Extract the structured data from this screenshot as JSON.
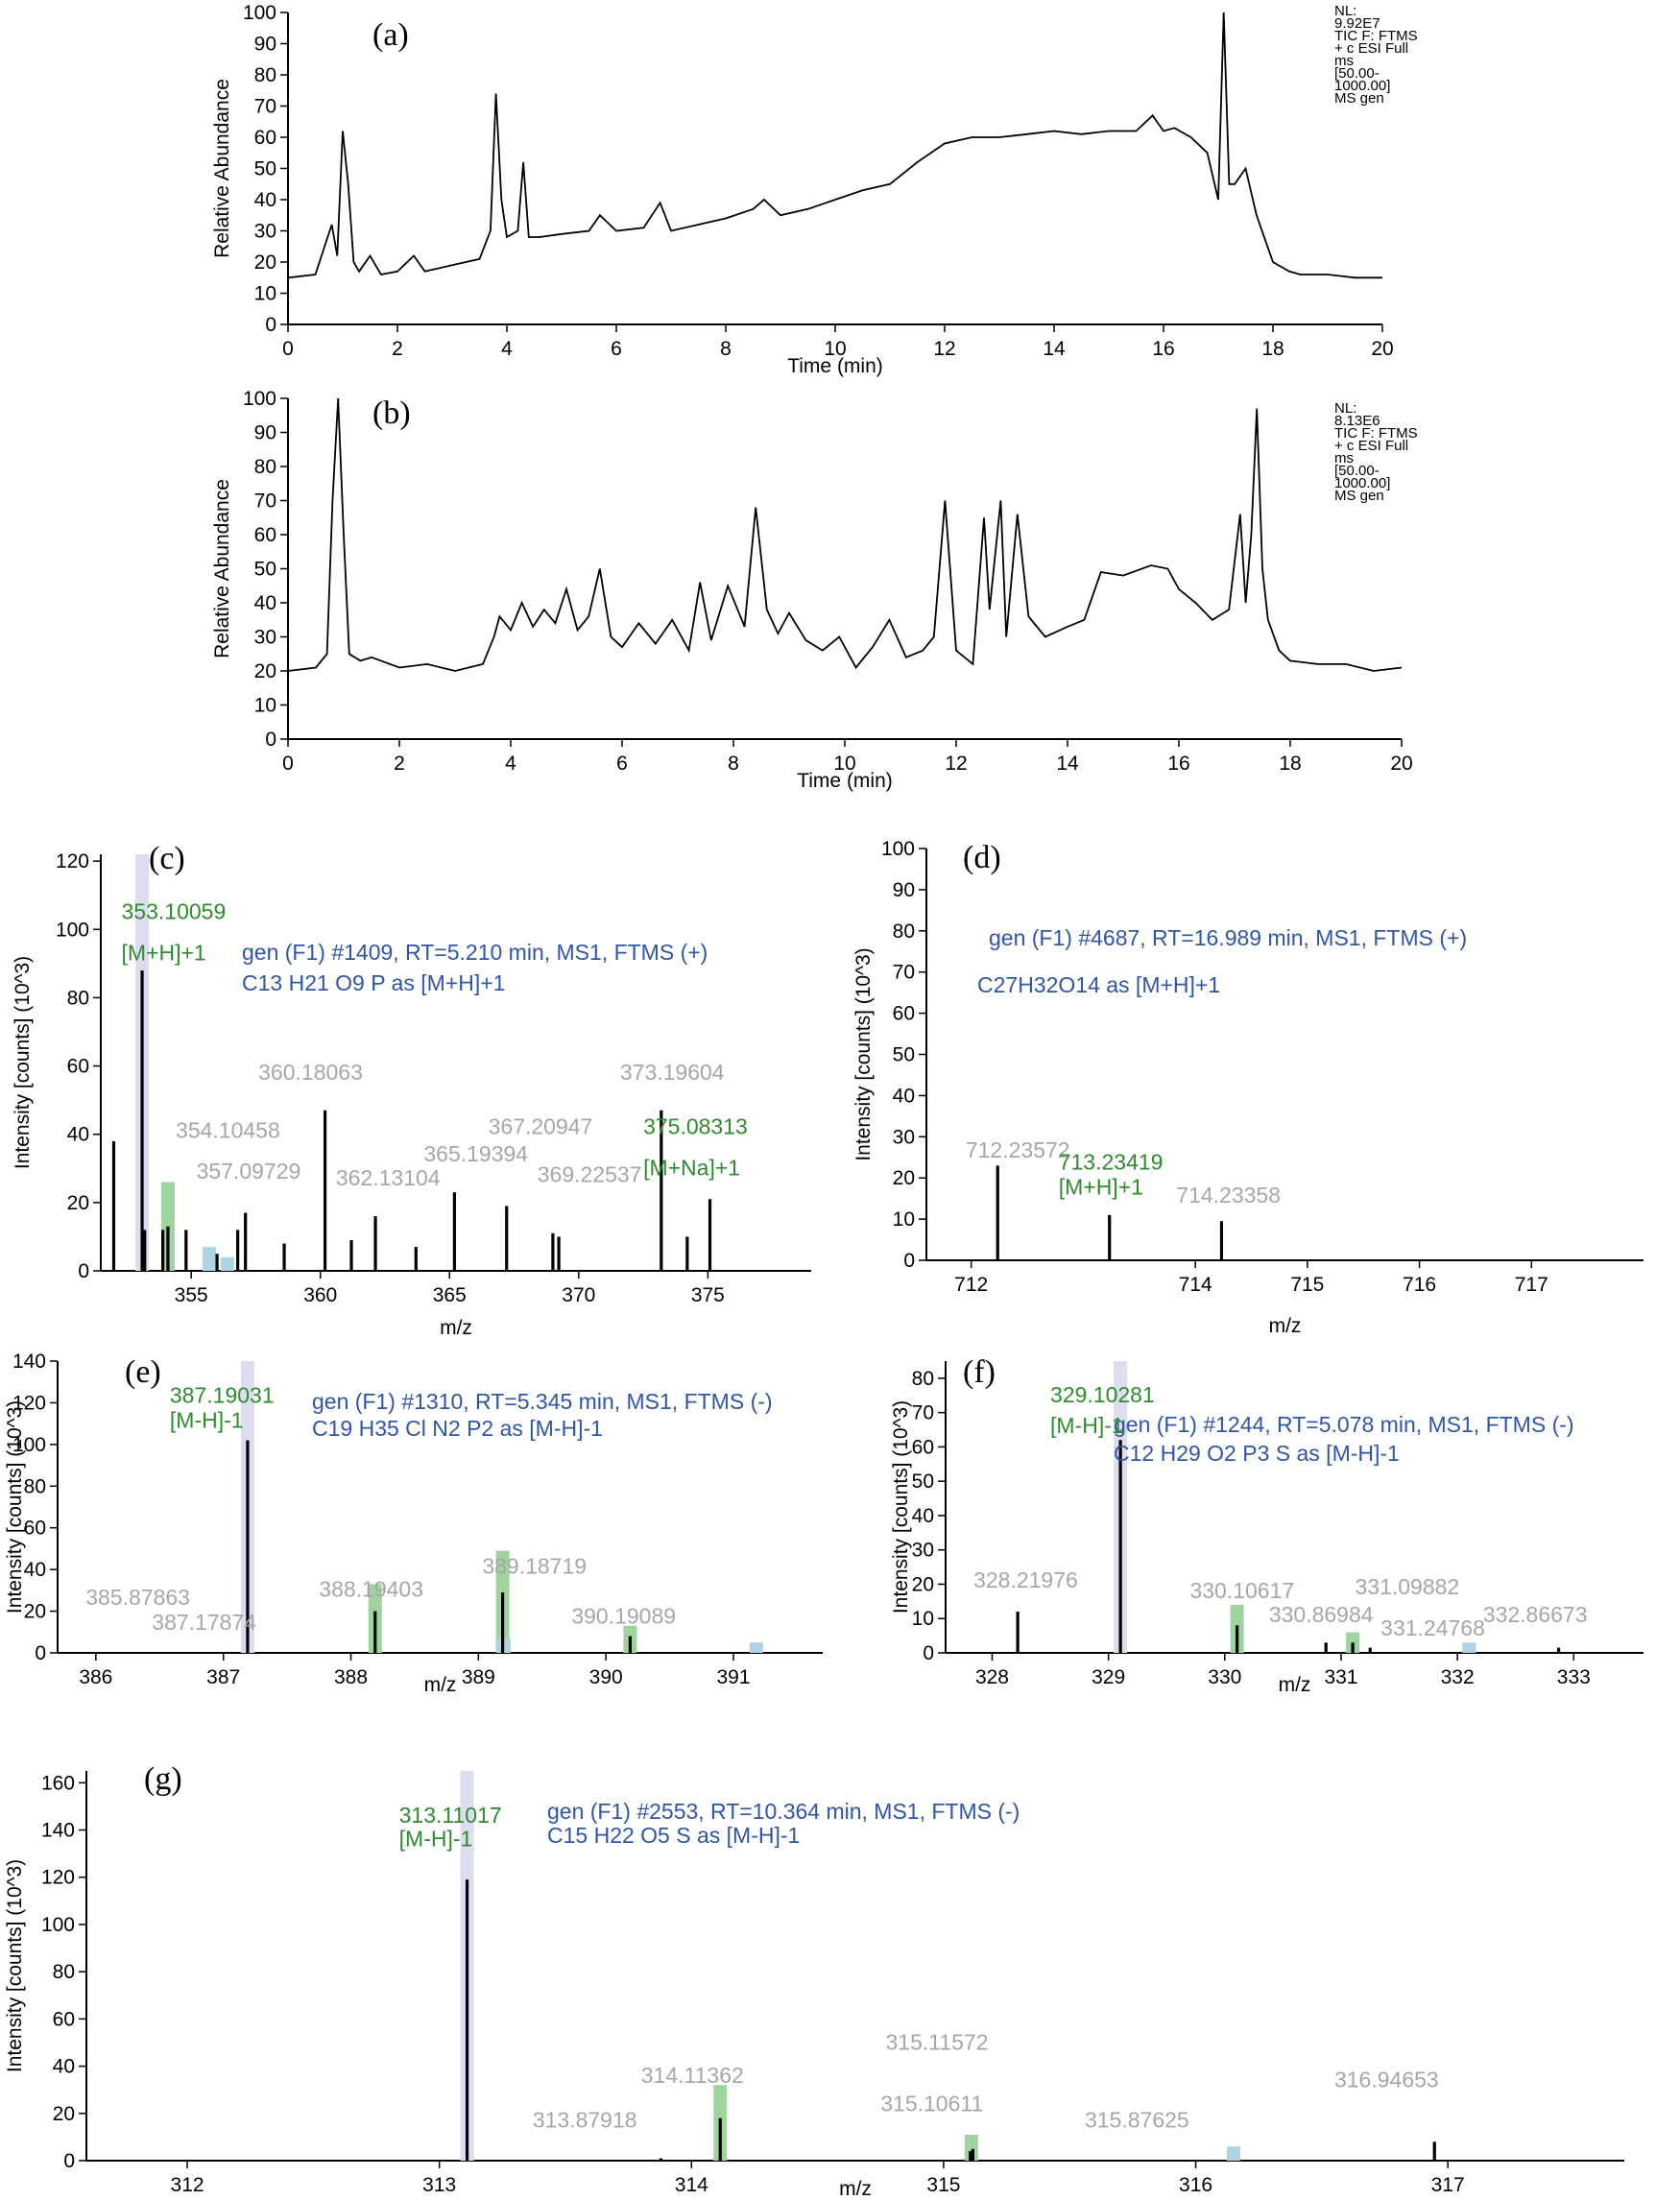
{
  "chart_data": [
    {
      "id": "a",
      "type": "line",
      "panel_label": "(a)",
      "xlabel": "Time (min)",
      "ylabel": "Relative Abundance",
      "xlim": [
        0,
        20
      ],
      "ylim": [
        0,
        100
      ],
      "xticks": [
        "0",
        "2",
        "4",
        "6",
        "8",
        "10",
        "12",
        "14",
        "16",
        "18",
        "20"
      ],
      "yticks": [
        "0",
        "10",
        "20",
        "30",
        "40",
        "50",
        "60",
        "70",
        "80",
        "90",
        "100"
      ],
      "info": [
        "NL:",
        "9.92E7",
        "TIC F: FTMS",
        "+ c ESI Full",
        "ms",
        "[50.00-",
        "1000.00]",
        "MS gen"
      ],
      "x": [
        0,
        0.5,
        0.8,
        0.9,
        1.0,
        1.1,
        1.2,
        1.3,
        1.5,
        1.7,
        2.0,
        2.3,
        2.5,
        3.0,
        3.5,
        3.7,
        3.8,
        3.9,
        4.0,
        4.2,
        4.3,
        4.4,
        4.6,
        5.0,
        5.5,
        5.7,
        6.0,
        6.5,
        6.8,
        7.0,
        7.5,
        8.0,
        8.5,
        8.7,
        9.0,
        9.5,
        10.0,
        10.5,
        11.0,
        11.5,
        12.0,
        12.5,
        13.0,
        13.5,
        14.0,
        14.5,
        15.0,
        15.5,
        15.8,
        16.0,
        16.2,
        16.5,
        16.8,
        17.0,
        17.1,
        17.2,
        17.3,
        17.5,
        17.7,
        18.0,
        18.3,
        18.5,
        19.0,
        19.5,
        20.0
      ],
      "y": [
        15,
        16,
        32,
        22,
        62,
        45,
        20,
        17,
        22,
        16,
        17,
        22,
        17,
        19,
        21,
        30,
        74,
        40,
        28,
        30,
        52,
        28,
        28,
        29,
        30,
        35,
        30,
        31,
        39,
        30,
        32,
        34,
        37,
        40,
        35,
        37,
        40,
        43,
        45,
        52,
        58,
        60,
        60,
        61,
        62,
        61,
        62,
        62,
        67,
        62,
        63,
        60,
        55,
        40,
        100,
        45,
        45,
        50,
        35,
        20,
        17,
        16,
        16,
        15,
        15
      ]
    },
    {
      "id": "b",
      "type": "line",
      "panel_label": "(b)",
      "xlabel": "Time (min)",
      "ylabel": "Relative Abundance",
      "xlim": [
        0,
        20
      ],
      "ylim": [
        0,
        100
      ],
      "xticks": [
        "0",
        "2",
        "4",
        "6",
        "8",
        "10",
        "12",
        "14",
        "16",
        "18",
        "20"
      ],
      "yticks": [
        "0",
        "10",
        "20",
        "30",
        "40",
        "50",
        "60",
        "70",
        "80",
        "90",
        "100"
      ],
      "info": [
        "NL:",
        "8.13E6",
        "TIC F: FTMS",
        "+ c ESI Full",
        "ms",
        "[50.00-",
        "1000.00]",
        "MS gen"
      ],
      "x": [
        0,
        0.5,
        0.7,
        0.8,
        0.9,
        1.0,
        1.1,
        1.3,
        1.5,
        2.0,
        2.5,
        3.0,
        3.5,
        3.7,
        3.8,
        4.0,
        4.2,
        4.4,
        4.6,
        4.8,
        5.0,
        5.2,
        5.4,
        5.6,
        5.8,
        6.0,
        6.3,
        6.6,
        6.9,
        7.2,
        7.4,
        7.6,
        7.9,
        8.2,
        8.4,
        8.6,
        8.8,
        9.0,
        9.3,
        9.6,
        9.9,
        10.2,
        10.5,
        10.8,
        11.1,
        11.4,
        11.6,
        11.8,
        12.0,
        12.3,
        12.5,
        12.6,
        12.8,
        12.9,
        13.1,
        13.3,
        13.6,
        14.0,
        14.3,
        14.6,
        15.0,
        15.5,
        15.8,
        16.0,
        16.3,
        16.6,
        16.9,
        17.1,
        17.2,
        17.3,
        17.4,
        17.5,
        17.6,
        17.8,
        18.0,
        18.5,
        19.0,
        19.5,
        20.0
      ],
      "y": [
        20,
        21,
        25,
        70,
        100,
        60,
        25,
        23,
        24,
        21,
        22,
        20,
        22,
        30,
        36,
        32,
        40,
        33,
        38,
        34,
        44,
        32,
        36,
        50,
        30,
        27,
        34,
        28,
        35,
        26,
        46,
        29,
        45,
        33,
        68,
        38,
        31,
        37,
        29,
        26,
        30,
        21,
        27,
        35,
        24,
        26,
        30,
        70,
        26,
        22,
        65,
        38,
        70,
        30,
        66,
        36,
        30,
        33,
        35,
        49,
        48,
        51,
        50,
        44,
        40,
        35,
        38,
        66,
        40,
        60,
        97,
        50,
        35,
        26,
        23,
        22,
        22,
        20,
        21
      ]
    },
    {
      "id": "c",
      "type": "bar",
      "panel_label": "(c)",
      "xlabel": "m/z",
      "ylabel": "Intensity [counts] (10^3)",
      "xlim": [
        351.5,
        379
      ],
      "ylim": [
        0,
        122
      ],
      "xticks": [
        "355",
        "360",
        "365",
        "370",
        "375"
      ],
      "yticks": [
        "0",
        "20",
        "40",
        "60",
        "80",
        "100",
        "120"
      ],
      "header": "gen (F1) #1409, RT=5.210 min, MS1, FTMS (+)",
      "formula": "C13 H21 O9 P as [M+H]+1",
      "peaks": [
        [
          352.0,
          38
        ],
        [
          353.1,
          88
        ],
        [
          353.2,
          12
        ],
        [
          353.9,
          12
        ],
        [
          354.1,
          13
        ],
        [
          354.8,
          12
        ],
        [
          356.0,
          5
        ],
        [
          356.8,
          12
        ],
        [
          357.1,
          17
        ],
        [
          358.6,
          8
        ],
        [
          360.18,
          47
        ],
        [
          361.2,
          9
        ],
        [
          362.13,
          16
        ],
        [
          363.7,
          7
        ],
        [
          365.19,
          23
        ],
        [
          367.21,
          19
        ],
        [
          369.0,
          11
        ],
        [
          369.23,
          10
        ],
        [
          373.196,
          47
        ],
        [
          374.2,
          10
        ],
        [
          375.08,
          21
        ]
      ],
      "hint_bars": [
        [
          353.1,
          122,
          "#ddddf0"
        ],
        [
          354.1,
          26,
          "#9fd49f"
        ],
        [
          355.7,
          7,
          "#aed4e0"
        ],
        [
          356.4,
          4,
          "#aed4e0"
        ]
      ],
      "labels": [
        {
          "text": "353.10059",
          "color": "green",
          "x": 352.3,
          "y": 103
        },
        {
          "text": "[M+H]+1",
          "color": "green",
          "x": 352.3,
          "y": 91
        },
        {
          "text": "354.10458",
          "color": "grey",
          "x": 354.4,
          "y": 39
        },
        {
          "text": "357.09729",
          "color": "grey",
          "x": 355.2,
          "y": 27
        },
        {
          "text": "360.18063",
          "color": "grey",
          "x": 357.6,
          "y": 56
        },
        {
          "text": "362.13104",
          "color": "grey",
          "x": 360.6,
          "y": 25
        },
        {
          "text": "365.19394",
          "color": "grey",
          "x": 364.0,
          "y": 32
        },
        {
          "text": "367.20947",
          "color": "grey",
          "x": 366.5,
          "y": 40
        },
        {
          "text": "369.22537",
          "color": "grey",
          "x": 368.4,
          "y": 26
        },
        {
          "text": "373.19604",
          "color": "grey",
          "x": 371.6,
          "y": 56
        },
        {
          "text": "375.08313",
          "color": "green",
          "x": 372.5,
          "y": 40
        },
        {
          "text": "[M+Na]+1",
          "color": "green",
          "x": 372.5,
          "y": 28
        }
      ]
    },
    {
      "id": "d",
      "type": "bar",
      "panel_label": "(d)",
      "xlabel": "m/z",
      "ylabel": "Intensity [counts] (10^3)",
      "xlim": [
        711.6,
        718.0
      ],
      "ylim": [
        0,
        100
      ],
      "xticks": [
        "712",
        "714",
        "715",
        "716",
        "717"
      ],
      "yticks": [
        "0",
        "10",
        "20",
        "30",
        "40",
        "50",
        "60",
        "70",
        "80",
        "90",
        "100"
      ],
      "header": "gen (F1) #4687, RT=16.989 min, MS1, FTMS (+)",
      "formula": "C27H32O14 as [M+H]+1",
      "peaks": [
        [
          712.236,
          23
        ],
        [
          713.234,
          11
        ],
        [
          714.234,
          9.5
        ]
      ],
      "hint_bars": [],
      "labels": [
        {
          "text": "712.23572",
          "color": "grey",
          "x": 711.95,
          "y": 25
        },
        {
          "text": "713.23419",
          "color": "green",
          "x": 712.78,
          "y": 22
        },
        {
          "text": "[M+H]+1",
          "color": "green",
          "x": 712.78,
          "y": 16
        },
        {
          "text": "714.23358",
          "color": "grey",
          "x": 713.83,
          "y": 14
        }
      ]
    },
    {
      "id": "e",
      "type": "bar",
      "panel_label": "(e)",
      "xlabel": "m/z",
      "ylabel": "Intensity [counts] (10^3)",
      "xlim": [
        385.7,
        391.7
      ],
      "ylim": [
        0,
        140
      ],
      "xticks": [
        "386",
        "387",
        "388",
        "389",
        "390",
        "391"
      ],
      "yticks": [
        "0",
        "20",
        "40",
        "60",
        "80",
        "100",
        "120",
        "140"
      ],
      "header": "gen (F1) #1310, RT=5.345 min, MS1, FTMS (-)",
      "formula": "C19 H35 Cl N2 P2 as [M-H]-1",
      "peaks": [
        [
          387.19,
          102
        ],
        [
          388.19,
          20
        ],
        [
          389.19,
          29
        ],
        [
          390.19,
          8
        ]
      ],
      "hint_bars": [
        [
          387.19,
          140,
          "#ddddf0"
        ],
        [
          388.19,
          33,
          "#9fd49f"
        ],
        [
          389.19,
          49,
          "#9fd49f"
        ],
        [
          389.2,
          7,
          "#aed4e0"
        ],
        [
          390.19,
          13,
          "#9fd49f"
        ],
        [
          391.18,
          5,
          "#aed4e0"
        ]
      ],
      "labels": [
        {
          "text": "387.19031",
          "color": "green",
          "x": 386.58,
          "y": 120
        },
        {
          "text": "[M-H]-1",
          "color": "green",
          "x": 386.58,
          "y": 108
        },
        {
          "text": "385.87863",
          "color": "grey",
          "x": 385.92,
          "y": 23
        },
        {
          "text": "387.17874",
          "color": "grey",
          "x": 386.44,
          "y": 11
        },
        {
          "text": "388.19403",
          "color": "grey",
          "x": 387.75,
          "y": 27
        },
        {
          "text": "389.18719",
          "color": "grey",
          "x": 389.03,
          "y": 38
        },
        {
          "text": "390.19089",
          "color": "grey",
          "x": 389.73,
          "y": 14
        }
      ]
    },
    {
      "id": "f",
      "type": "bar",
      "panel_label": "(f)",
      "xlabel": "m/z",
      "ylabel": "Intensity [counts] (10^3)",
      "xlim": [
        327.6,
        333.6
      ],
      "ylim": [
        0,
        85
      ],
      "xticks": [
        "328",
        "329",
        "330",
        "331",
        "332",
        "333"
      ],
      "yticks": [
        "0",
        "10",
        "20",
        "30",
        "40",
        "50",
        "60",
        "70",
        "80"
      ],
      "header": "gen (F1) #1244, RT=5.078 min, MS1, FTMS (-)",
      "formula": "C12 H29 O2 P3 S as [M-H]-1",
      "peaks": [
        [
          328.22,
          12
        ],
        [
          329.103,
          62
        ],
        [
          330.106,
          8
        ],
        [
          330.87,
          3
        ],
        [
          331.1,
          3
        ],
        [
          331.25,
          1.5
        ],
        [
          332.87,
          1.5
        ]
      ],
      "hint_bars": [
        [
          329.103,
          85,
          "#ddddf0"
        ],
        [
          330.106,
          14,
          "#9fd49f"
        ],
        [
          331.1,
          6,
          "#9fd49f"
        ],
        [
          332.1,
          3,
          "#aed4e0"
        ]
      ],
      "labels": [
        {
          "text": "329.10281",
          "color": "green",
          "x": 328.5,
          "y": 73
        },
        {
          "text": "[M-H]-1",
          "color": "green",
          "x": 328.5,
          "y": 64
        },
        {
          "text": "gen (F1) #1244, RT=5.078 min, MS1, FTMS (-)",
          "color": "blue",
          "x": 329.14,
          "y": 59
        },
        {
          "text": "328.21976",
          "color": "grey",
          "x": 327.84,
          "y": 19
        },
        {
          "text": "330.10617",
          "color": "grey",
          "x": 329.7,
          "y": 16
        },
        {
          "text": "330.86984",
          "color": "grey",
          "x": 330.38,
          "y": 9
        },
        {
          "text": "331.09882",
          "color": "grey",
          "x": 331.12,
          "y": 17
        },
        {
          "text": "331.24768",
          "color": "grey",
          "x": 331.34,
          "y": 5
        },
        {
          "text": "332.86673",
          "color": "grey",
          "x": 332.22,
          "y": 9
        }
      ]
    },
    {
      "id": "g",
      "type": "bar",
      "panel_label": "(g)",
      "xlabel": "m/z",
      "ylabel": "Intensity [counts] (10^3)",
      "xlim": [
        311.6,
        317.7
      ],
      "ylim": [
        0,
        165
      ],
      "xticks": [
        "312",
        "313",
        "314",
        "315",
        "316",
        "317"
      ],
      "yticks": [
        "0",
        "20",
        "40",
        "60",
        "80",
        "100",
        "120",
        "140",
        "160"
      ],
      "header": "gen (F1) #2553, RT=10.364 min, MS1, FTMS (-)",
      "formula": "C15 H22 O5 S as [M-H]-1",
      "peaks": [
        [
          313.11,
          119
        ],
        [
          313.879,
          1
        ],
        [
          314.114,
          18
        ],
        [
          315.106,
          4
        ],
        [
          315.116,
          5
        ],
        [
          316.947,
          8
        ]
      ],
      "hint_bars": [
        [
          313.11,
          165,
          "#ddddf0"
        ],
        [
          314.114,
          32,
          "#9fd49f"
        ],
        [
          315.11,
          11,
          "#9fd49f"
        ],
        [
          316.15,
          6,
          "#aed4e0"
        ]
      ],
      "labels": [
        {
          "text": "313.11017",
          "color": "green",
          "x": 312.84,
          "y": 143
        },
        {
          "text": "[M-H]-1",
          "color": "green",
          "x": 312.84,
          "y": 133
        },
        {
          "text": "313.87918",
          "color": "grey",
          "x": 313.37,
          "y": 14
        },
        {
          "text": "314.11362",
          "color": "grey",
          "x": 313.8,
          "y": 33
        },
        {
          "text": "315.11572",
          "color": "grey",
          "x": 314.77,
          "y": 47
        },
        {
          "text": "315.10611",
          "color": "grey",
          "x": 314.75,
          "y": 21
        },
        {
          "text": "315.87625",
          "color": "grey",
          "x": 315.56,
          "y": 14
        },
        {
          "text": "316.94653",
          "color": "grey",
          "x": 316.55,
          "y": 31
        }
      ]
    }
  ]
}
